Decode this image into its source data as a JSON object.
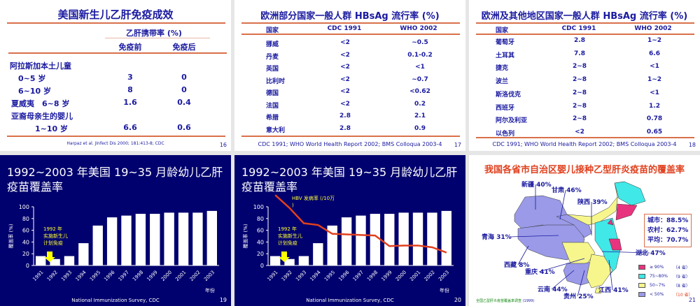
{
  "slide16": {
    "title": "美国新生儿乙肝免疫成效",
    "group_header": "乙肝携带率 (%)",
    "col_before": "免疫前",
    "col_after": "免疫后",
    "rows": [
      {
        "label": "阿拉斯加本土儿童",
        "before": "",
        "after": ""
      },
      {
        "label": "0~5 岁",
        "before": "3",
        "after": "0"
      },
      {
        "label": "6~10 岁",
        "before": "8",
        "after": "0"
      },
      {
        "label": "夏威夷　6~8 岁",
        "before": "1.6",
        "after": "0.4"
      },
      {
        "label": "亚裔母亲生的婴儿",
        "before": "",
        "after": ""
      },
      {
        "label": "1~10  岁",
        "before": "6.6",
        "after": "0.6"
      }
    ],
    "source": "Harpaz et al. JInfect Dis 2000; 181:413-8; CDC",
    "page": "16"
  },
  "slide17": {
    "title": "欧洲部分国家一般人群 HBsAg 流行率 (%)",
    "headers": [
      "国家",
      "CDC 1991",
      "WHO 2002"
    ],
    "rows": [
      [
        "挪威",
        "<2",
        "~0.5"
      ],
      [
        "丹麦",
        "<2",
        "0.1-0.2"
      ],
      [
        "英国",
        "<2",
        "<1"
      ],
      [
        "比利时",
        "<2",
        "~0.7"
      ],
      [
        "德国",
        "<2",
        "<0.62"
      ],
      [
        "法国",
        "<2",
        "0.2"
      ],
      [
        "希腊",
        "2.8",
        "2.1"
      ],
      [
        "意大利",
        "2.8",
        "0.9"
      ]
    ],
    "source": "CDC 1991; WHO World Health Report 2002; BMS Colloqua 2003-4",
    "page": "17"
  },
  "slide18": {
    "title": "欧洲及其他地区国家一般人群 HBsAg 流行率 (%)",
    "headers": [
      "国家",
      "CDC 1991",
      "WHO 2002"
    ],
    "rows": [
      [
        "葡萄牙",
        "2.8",
        "1~2"
      ],
      [
        "土耳其",
        "7.8",
        "6.6"
      ],
      [
        "捷克",
        "2~8",
        "<1"
      ],
      [
        "波兰",
        "2~8",
        "1~2"
      ],
      [
        "斯洛伐克",
        "2~8",
        "<1"
      ],
      [
        "西班牙",
        "2~8",
        "1.2"
      ],
      [
        "阿尔及利亚",
        "2~8",
        "0.78"
      ],
      [
        "以色列",
        "<2",
        "0.65"
      ]
    ],
    "source": "CDC 1991; WHO World Health Report 2002; BMS Colloqua 2003-4",
    "page": "18"
  },
  "chart_data": [
    {
      "type": "bar",
      "title": "1992~2003 年美国 19~35 月龄幼儿乙肝疫苗覆盖率",
      "ylabel": "覆盖率 (%)",
      "xlabel": "年份",
      "ylim": [
        0,
        100
      ],
      "yticks": [
        "0",
        "20",
        "40",
        "60",
        "80",
        "100"
      ],
      "categories": [
        "1991",
        "1992",
        "1993",
        "1994",
        "1995",
        "1996",
        "1997",
        "1998",
        "1999",
        "2000",
        "2001",
        "2002",
        "2003"
      ],
      "values": [
        16,
        11,
        16,
        38,
        68,
        82,
        85,
        88,
        88,
        90,
        90,
        90,
        93
      ],
      "bar_color": "#ffffff",
      "annotation": "1992 年实施新生儿计划免疫",
      "source": "National Immunization Survey, CDC",
      "page": "19"
    },
    {
      "type": "bar+line",
      "title": "1992~2003 年美国 19~35 月龄幼儿乙肝疫苗覆盖率",
      "ylabel": "覆盖率 (%)",
      "xlabel": "年份",
      "ylim": [
        0,
        100
      ],
      "yticks": [
        "0",
        "20",
        "40",
        "60",
        "80",
        "100"
      ],
      "categories": [
        "1991",
        "1992",
        "1993",
        "1994",
        "1995",
        "1996",
        "1997",
        "1998",
        "1999",
        "2000",
        "2001",
        "2002",
        "2003"
      ],
      "values": [
        16,
        11,
        16,
        38,
        68,
        82,
        85,
        88,
        88,
        90,
        90,
        90,
        93
      ],
      "line": {
        "name": "HBV 发病率 (/10万)",
        "values": [
          120,
          98,
          72,
          69,
          54,
          53,
          52,
          51,
          33,
          34,
          34,
          31,
          22
        ],
        "color": "#e0401e"
      },
      "annotation": "1992 年实施新生儿计划免疫",
      "source": "National Immunization Survey, CDC",
      "page": "20"
    }
  ],
  "slide21": {
    "title": "我国各省市自治区婴儿接种乙型肝炎疫苗的覆盖率",
    "labels": [
      "新疆 40%",
      "甘肃 46%",
      "陕西 39%",
      "青海 31%",
      "西藏 8%",
      "重庆 41%",
      "云南 44%",
      "贵州 25%",
      "江西 41%",
      "湖北 47%"
    ],
    "summary": [
      {
        "k": "城市：",
        "v": "88.5%"
      },
      {
        "k": "农村：",
        "v": "62.7%"
      },
      {
        "k": "平均：",
        "v": "70.7%"
      }
    ],
    "legend": [
      {
        "label": "≥ 90%",
        "count": "（4 省）",
        "color": "#e8347e"
      },
      {
        "label": "75~80%",
        "count": "（9 省）",
        "color": "#40e8e8"
      },
      {
        "label": "50~7%",
        "count": "（8 省）",
        "color": "#f6f68c"
      },
      {
        "label": "< 50%",
        "count": "（10 省）",
        "color": "#9a9ae8"
      }
    ],
    "source": "全国乙型肝炎疫苗覆盖率调查",
    "year": "(1999)",
    "page": "21"
  }
}
